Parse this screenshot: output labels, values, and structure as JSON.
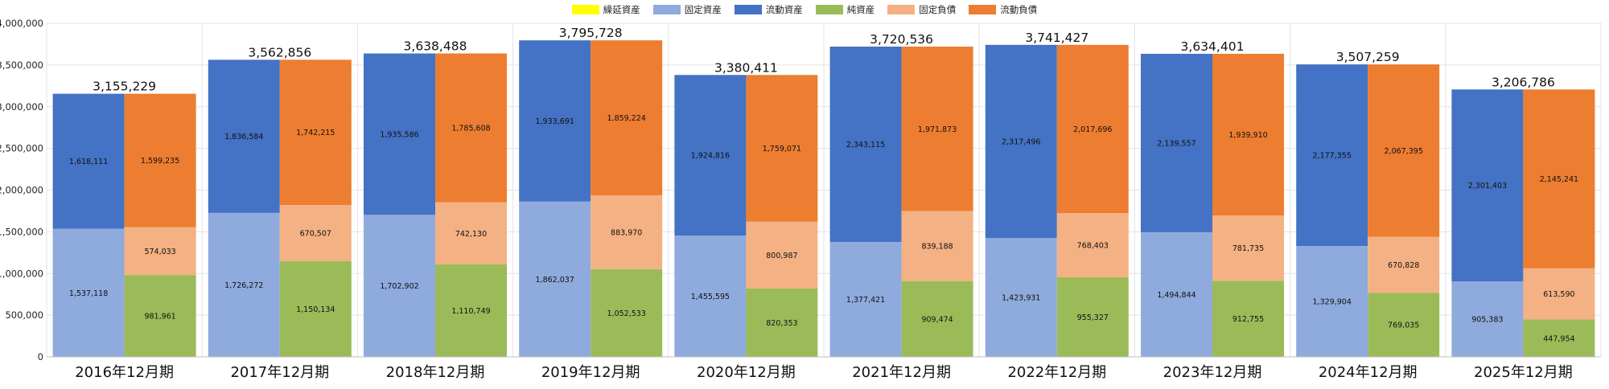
{
  "colors": {
    "繰延資産": "#ffff00",
    "固定資産": "#8faadc",
    "流動資産": "#4472c4",
    "純資産": "#9bbb59",
    "固定負債": "#f4b183",
    "流動負債": "#ed7d31"
  },
  "chart_data": {
    "type": "bar",
    "stacked": true,
    "grid": true,
    "legend_position": "top",
    "ylim": [
      0,
      4000000
    ],
    "yticks": [
      "0",
      "500,000",
      "1,000,000",
      "1,500,000",
      "2,000,000",
      "2,500,000",
      "3,000,000",
      "3,500,000",
      "4,000,000"
    ],
    "yticks_values": [
      0,
      500000,
      1000000,
      1500000,
      2000000,
      2500000,
      3000000,
      3500000,
      4000000
    ],
    "categories": [
      "2016年12月期",
      "2017年12月期",
      "2018年12月期",
      "2019年12月期",
      "2020年12月期",
      "2021年12月期",
      "2022年12月期",
      "2023年12月期",
      "2024年12月期",
      "2025年12月期"
    ],
    "legend": [
      "繰延資産",
      "固定資産",
      "流動資産",
      "純資産",
      "固定負債",
      "流動負債"
    ],
    "totals": [
      3155229,
      3562856,
      3638488,
      3795728,
      3380411,
      3720536,
      3741427,
      3634401,
      3507259,
      3206786
    ],
    "totals_labels": [
      "3,155,229",
      "3,562,856",
      "3,638,488",
      "3,795,728",
      "3,380,411",
      "3,720,536",
      "3,741,427",
      "3,634,401",
      "3,507,259",
      "3,206,786"
    ],
    "assets": {
      "固定資産": [
        1537118,
        1726272,
        1702902,
        1862037,
        1455595,
        1377421,
        1423931,
        1494844,
        1329904,
        905383
      ],
      "流動資産": [
        1618111,
        1836584,
        1935586,
        1933691,
        1924816,
        2343115,
        2317496,
        2139557,
        2177355,
        2301403
      ]
    },
    "liabilities": {
      "純資産": [
        981961,
        1150134,
        1110749,
        1052533,
        820353,
        909474,
        955327,
        912755,
        769035,
        447954
      ],
      "固定負債": [
        574033,
        670507,
        742130,
        883970,
        800987,
        839188,
        768403,
        781735,
        670828,
        613590
      ],
      "流動負債": [
        1599235,
        1742215,
        1785608,
        1859224,
        1759071,
        1971873,
        2017696,
        1939910,
        2067395,
        2145241
      ]
    },
    "asset_labels": {
      "固定資産": [
        "1,537,118",
        "1,726,272",
        "1,702,902",
        "1,862,037",
        "1,455,595",
        "1,377,421",
        "1,423,931",
        "1,494,844",
        "1,329,904",
        "905,383"
      ],
      "流動資産": [
        "1,618,111",
        "1,836,584",
        "1,935,586",
        "1,933,691",
        "1,924,816",
        "2,343,115",
        "2,317,496",
        "2,139,557",
        "2,177,355",
        "2,301,403"
      ]
    },
    "liability_labels": {
      "純資産": [
        "981,961",
        "1,150,134",
        "1,110,749",
        "1,052,533",
        "820,353",
        "909,474",
        "955,327",
        "912,755",
        "769,035",
        "447,954"
      ],
      "固定負債": [
        "574,033",
        "670,507",
        "742,130",
        "883,970",
        "800,987",
        "839,188",
        "768,403",
        "781,735",
        "670,828",
        "613,590"
      ],
      "流動負債": [
        "1,599,235",
        "1,742,215",
        "1,785,608",
        "1,859,224",
        "1,759,071",
        "1,971,873",
        "2,017,696",
        "1,939,910",
        "2,067,395",
        "2,145,241"
      ]
    }
  }
}
